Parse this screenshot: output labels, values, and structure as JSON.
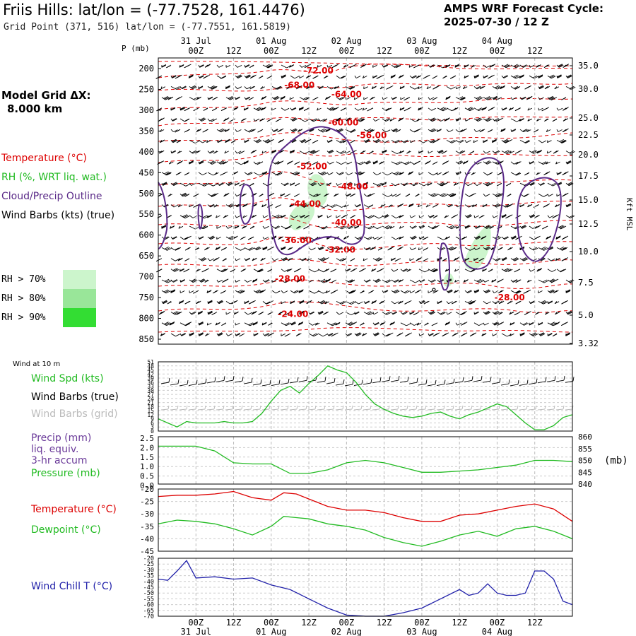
{
  "header": {
    "title": "Friis Hills:  lat/lon = (-77.7528, 161.4476)",
    "subtitle": "Grid Point (371, 516) lat/lon = (-77.7551, 161.5819)",
    "cycle_title": "AMPS WRF Forecast Cycle:",
    "cycle_date": "2025-07-30 / 12  Z",
    "grid_label": "Model Grid ΔX:",
    "grid_value": "8.000 km"
  },
  "colors": {
    "temperature": "#dd0000",
    "rh": "#22bb22",
    "cloud": "#5a2a88",
    "wind_barbs": "#000000",
    "wind_barbs_grid": "#bbbbbb",
    "pressure": "#22bb22",
    "precip": "#6a3a99",
    "dewpoint": "#22bb22",
    "windchill": "#2222aa",
    "rh70": "#ccf5cc",
    "rh80": "#99e699",
    "rh90": "#33dd33"
  },
  "legend": {
    "temperature": "Temperature (°C)",
    "rh": "RH (%, WRT liq. wat.)",
    "cloud": "Cloud/Precip Outline",
    "wind": "Wind Barbs (kts) (true)",
    "rh_bins": [
      "RH > 70%",
      "RH > 80%",
      "RH > 90%"
    ]
  },
  "time_axis": {
    "hour_labels": [
      "00Z",
      "12Z",
      "00Z",
      "12Z",
      "00Z",
      "12Z",
      "00Z",
      "12Z",
      "00Z",
      "12Z"
    ],
    "date_labels": [
      "31 Jul",
      "01 Aug",
      "02 Aug",
      "03 Aug",
      "04 Aug"
    ],
    "start": "2025-07-30 12Z",
    "end": "2025-08-04 12Z"
  },
  "chart_data": [
    {
      "type": "heatmap",
      "name": "cross-section",
      "y_title": "P (mb)",
      "y_right_title": "Kft MSL",
      "y_ticks": [
        "200",
        "250",
        "300",
        "350",
        "400",
        "450",
        "500",
        "550",
        "600",
        "650",
        "700",
        "750",
        "800",
        "850"
      ],
      "y_right_ticks": [
        "35.0",
        "30.0",
        "25.0",
        "22.5",
        "20.0",
        "17.5",
        "15.0",
        "12.5",
        "10.0",
        "7.5",
        "5.0",
        "3.32"
      ],
      "ylim": [
        850,
        200
      ],
      "isotherm_labels": [
        {
          "text": "-72.00",
          "hour": 51,
          "p": 205
        },
        {
          "text": "-68.00",
          "hour": 45,
          "p": 240
        },
        {
          "text": "-64.00",
          "hour": 60,
          "p": 262
        },
        {
          "text": "-60.00",
          "hour": 59,
          "p": 330
        },
        {
          "text": "-56.00",
          "hour": 68,
          "p": 360
        },
        {
          "text": "-52.00",
          "hour": 49,
          "p": 435
        },
        {
          "text": "-48.00",
          "hour": 62,
          "p": 483
        },
        {
          "text": "-44.00",
          "hour": 47,
          "p": 525
        },
        {
          "text": "-40.00",
          "hour": 60,
          "p": 570
        },
        {
          "text": "-36.00",
          "hour": 44,
          "p": 612
        },
        {
          "text": "-32.00",
          "hour": 58,
          "p": 635
        },
        {
          "text": "-28.00",
          "hour": 42,
          "p": 705
        },
        {
          "text": "-28.00",
          "hour": 112,
          "p": 750
        },
        {
          "text": "-24.00",
          "hour": 43,
          "p": 790
        }
      ]
    },
    {
      "type": "line",
      "name": "wind-10m",
      "header_label": "Wind at 10 m",
      "series_labels": [
        "Wind Spd (kts)",
        "Wind Barbs (true)",
        "Wind Barbs (grid)"
      ],
      "y_ticks": [
        "51",
        "48",
        "45",
        "42",
        "39",
        "36",
        "33",
        "30",
        "27",
        "24",
        "21",
        "18",
        "15",
        "12",
        "9",
        "6",
        "3",
        "0"
      ],
      "ylim": [
        0,
        51
      ],
      "x_hours": [
        0,
        3,
        6,
        9,
        12,
        15,
        18,
        21,
        24,
        27,
        30,
        33,
        36,
        39,
        42,
        45,
        48,
        51,
        54,
        57,
        60,
        63,
        66,
        69,
        72,
        75,
        78,
        81,
        84,
        87,
        90,
        93,
        96,
        99,
        102,
        105,
        108,
        111,
        114,
        117,
        120,
        123,
        126,
        129,
        132
      ],
      "values": [
        9,
        6,
        3,
        7,
        6,
        6,
        6,
        7,
        6,
        6,
        7,
        13,
        22,
        30,
        33,
        28,
        35,
        41,
        48,
        45,
        43,
        36,
        27,
        20,
        16,
        13,
        11,
        10,
        11,
        13,
        14,
        11,
        9,
        12,
        14,
        17,
        20,
        18,
        12,
        6,
        1,
        1,
        4,
        10,
        12
      ]
    },
    {
      "type": "line",
      "name": "precip-pressure",
      "series_labels": [
        "Precip (mm)",
        "liq. equiv.",
        "3-hr accum",
        "Pressure (mb)"
      ],
      "y_ticks": [
        "2.5",
        "2.0",
        "1.5",
        "1.0",
        "0.5",
        "0.0"
      ],
      "y_right_ticks": [
        "860",
        "855",
        "850",
        "845",
        "840"
      ],
      "y_right_unit": "(mb)",
      "ylim": [
        0,
        2.5
      ],
      "y_right_lim": [
        840,
        860
      ],
      "x_hours": [
        0,
        6,
        12,
        18,
        24,
        30,
        36,
        42,
        48,
        54,
        60,
        66,
        72,
        78,
        84,
        90,
        96,
        102,
        108,
        114,
        120,
        126,
        132
      ],
      "pressure": [
        856,
        856,
        856,
        854,
        849,
        848.5,
        848.5,
        844.5,
        844.5,
        846,
        849,
        850,
        849,
        847,
        845,
        845,
        845.5,
        846,
        847,
        848,
        850,
        850,
        849.5
      ],
      "precip": [
        0,
        0,
        0,
        0,
        0,
        0,
        0,
        0,
        0,
        0,
        0,
        0,
        0,
        0,
        0,
        0,
        0,
        0,
        0,
        0,
        0,
        0,
        0
      ]
    },
    {
      "type": "line",
      "name": "temp-dewpoint",
      "series_labels": [
        "Temperature (°C)",
        "Dewpoint (°C)"
      ],
      "y_ticks": [
        "-20",
        "-25",
        "-30",
        "-35",
        "-40",
        "-45"
      ],
      "ylim": [
        -45,
        -20
      ],
      "x_hours": [
        0,
        6,
        12,
        18,
        24,
        30,
        36,
        40,
        44,
        48,
        54,
        60,
        66,
        72,
        78,
        84,
        90,
        96,
        102,
        108,
        114,
        120,
        126,
        132
      ],
      "temperature": [
        -23,
        -22.5,
        -22.5,
        -22,
        -21,
        -23.5,
        -24.5,
        -21.5,
        -22,
        -24,
        -27,
        -28.5,
        -28.5,
        -29.5,
        -31.5,
        -33,
        -33,
        -30.5,
        -30,
        -28.5,
        -27,
        -26,
        -28,
        -33
      ],
      "dewpoint": [
        -34,
        -32.5,
        -33,
        -34,
        -36,
        -38.5,
        -35,
        -31,
        -31.5,
        -32,
        -34,
        -35,
        -36.5,
        -39.5,
        -41.5,
        -43,
        -41,
        -38.5,
        -37,
        -39,
        -36,
        -35,
        -37,
        -40
      ]
    },
    {
      "type": "line",
      "name": "wind-chill",
      "series_labels": [
        "Wind Chill T (°C)"
      ],
      "y_ticks": [
        "-20",
        "-25",
        "-30",
        "-35",
        "-40",
        "-45",
        "-50",
        "-55",
        "-60",
        "-65",
        "-70"
      ],
      "ylim": [
        -70,
        -20
      ],
      "x_hours": [
        0,
        3,
        6,
        9,
        12,
        18,
        24,
        30,
        36,
        42,
        48,
        54,
        60,
        66,
        72,
        78,
        84,
        90,
        96,
        99,
        102,
        105,
        108,
        111,
        114,
        117,
        120,
        123,
        126,
        129,
        132
      ],
      "values": [
        -38,
        -39,
        -31,
        -22,
        -37,
        -36,
        -38,
        -37,
        -43,
        -47,
        -55,
        -63,
        -69,
        -70,
        -70,
        -67,
        -63,
        -55,
        -47,
        -52,
        -50,
        -42,
        -50,
        -52,
        -52,
        -50,
        -31,
        -31,
        -38,
        -57,
        -60
      ]
    }
  ]
}
